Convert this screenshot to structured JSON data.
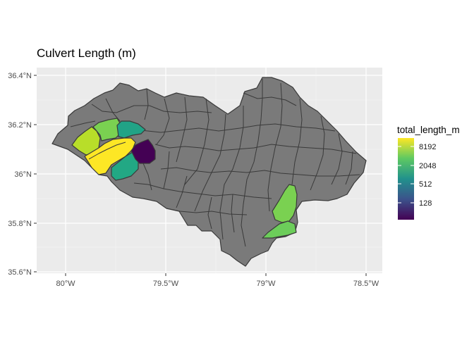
{
  "title": "Culvert Length (m)",
  "map": {
    "type": "choropleth",
    "panel_background": "#ebebeb",
    "grid_color": "#ffffff",
    "default_fill": "#7a7a7a",
    "border_color": "#3a3a3a",
    "x_ticks": [
      "80°W",
      "79.5°W",
      "79°W",
      "78.5°W"
    ],
    "y_ticks": [
      "36.4°N",
      "36.2°N",
      "36°N",
      "35.8°N",
      "35.6°N"
    ]
  },
  "legend": {
    "title": "total_length_m",
    "labels": [
      "8192",
      "2048",
      "512",
      "128"
    ],
    "palette": "viridis",
    "colors": [
      "#440154",
      "#31688e",
      "#21918c",
      "#35b779",
      "#fde725"
    ]
  },
  "chart_data": {
    "type": "choropleth",
    "title": "Culvert Length (m)",
    "xlabel": "",
    "ylabel": "",
    "x_ticks": [
      "80°W",
      "79.5°W",
      "79°W",
      "78.5°W"
    ],
    "y_ticks": [
      "36.4°N",
      "36.2°N",
      "36°N",
      "35.8°N",
      "35.6°N"
    ],
    "xlim": [
      -80.05,
      -78.45
    ],
    "ylim": [
      35.6,
      36.42
    ],
    "legend_title": "total_length_m",
    "legend_breaks": [
      128,
      512,
      2048,
      8192
    ],
    "color_scale": "log2 viridis",
    "highlighted_regions": [
      {
        "approx_value": 12000,
        "color": "#fde725"
      },
      {
        "approx_value": 6000,
        "color": "#b8de29"
      },
      {
        "approx_value": 4000,
        "color": "#7ad151"
      },
      {
        "approx_value": 1500,
        "color": "#21a386"
      },
      {
        "approx_value": 1500,
        "color": "#22a884"
      },
      {
        "approx_value": 70,
        "color": "#440154"
      },
      {
        "approx_value": 4000,
        "color": "#7ad151"
      },
      {
        "approx_value": 3500,
        "color": "#6ccd5a"
      }
    ]
  }
}
